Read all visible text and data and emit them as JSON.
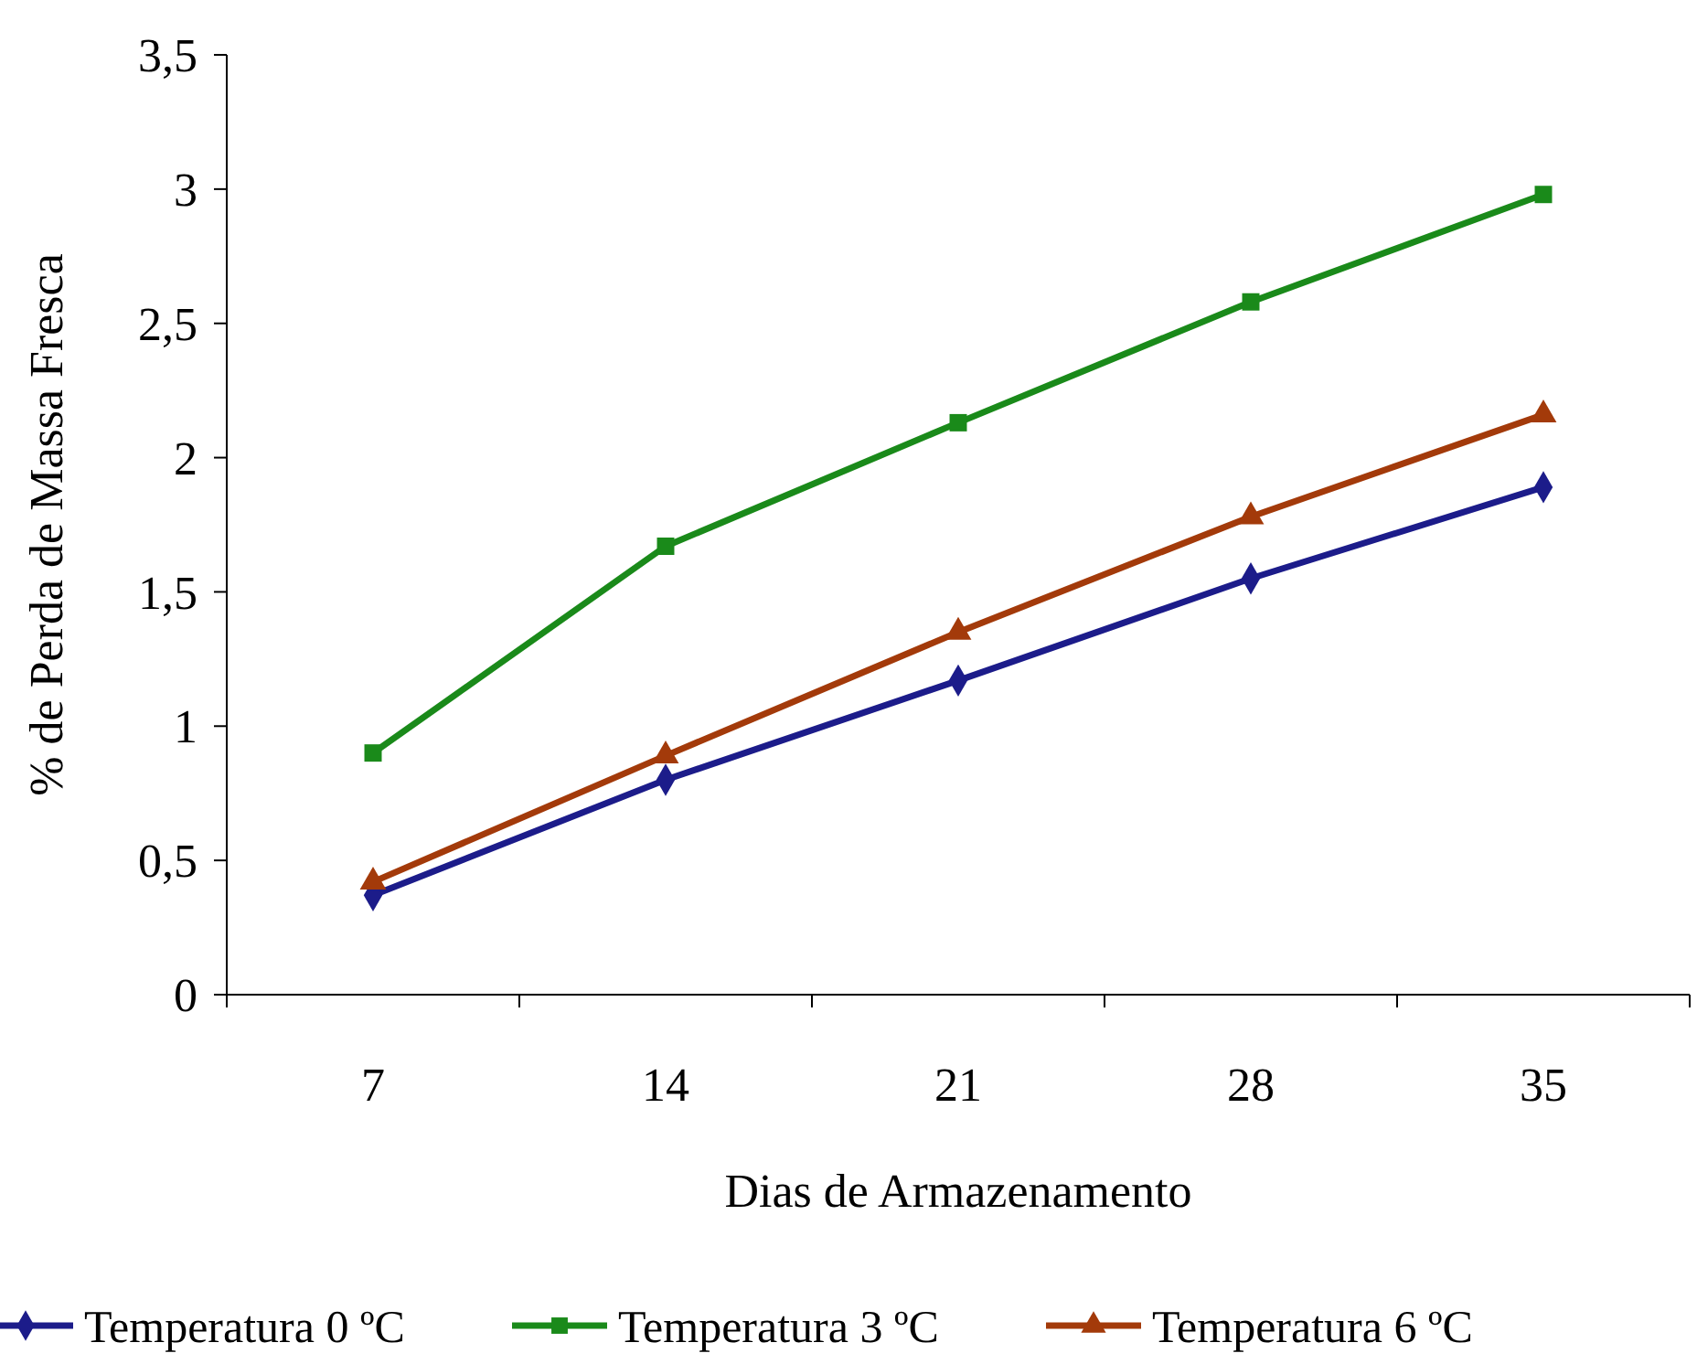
{
  "chart_data": {
    "type": "line",
    "xlabel": "Dias de Armazenamento",
    "ylabel": "% de Perda de Massa Fresca",
    "categories": [
      "7",
      "14",
      "21",
      "28",
      "35"
    ],
    "series": [
      {
        "name": "Temperatura 0 ºC",
        "color": "#1c1c8a",
        "marker": "diamond",
        "values": [
          0.37,
          0.8,
          1.17,
          1.55,
          1.89
        ]
      },
      {
        "name": "Temperatura 3 ºC",
        "color": "#1a8a1a",
        "marker": "square",
        "values": [
          0.9,
          1.67,
          2.13,
          2.58,
          2.98
        ]
      },
      {
        "name": "Temperatura 6 ºC",
        "color": "#a33a0a",
        "marker": "triangle",
        "values": [
          0.42,
          0.89,
          1.35,
          1.78,
          2.16
        ]
      }
    ],
    "ylim": [
      0,
      3.5
    ],
    "yticks": [
      0,
      {
        "value": 0.5,
        "label": "0,5"
      },
      1,
      {
        "value": 1.5,
        "label": "1,5"
      },
      2,
      {
        "value": 2.5,
        "label": "2,5"
      },
      3,
      {
        "value": 3.5,
        "label": "3,5"
      }
    ],
    "grid": false,
    "legend": "bottom",
    "line_style": "solid"
  }
}
